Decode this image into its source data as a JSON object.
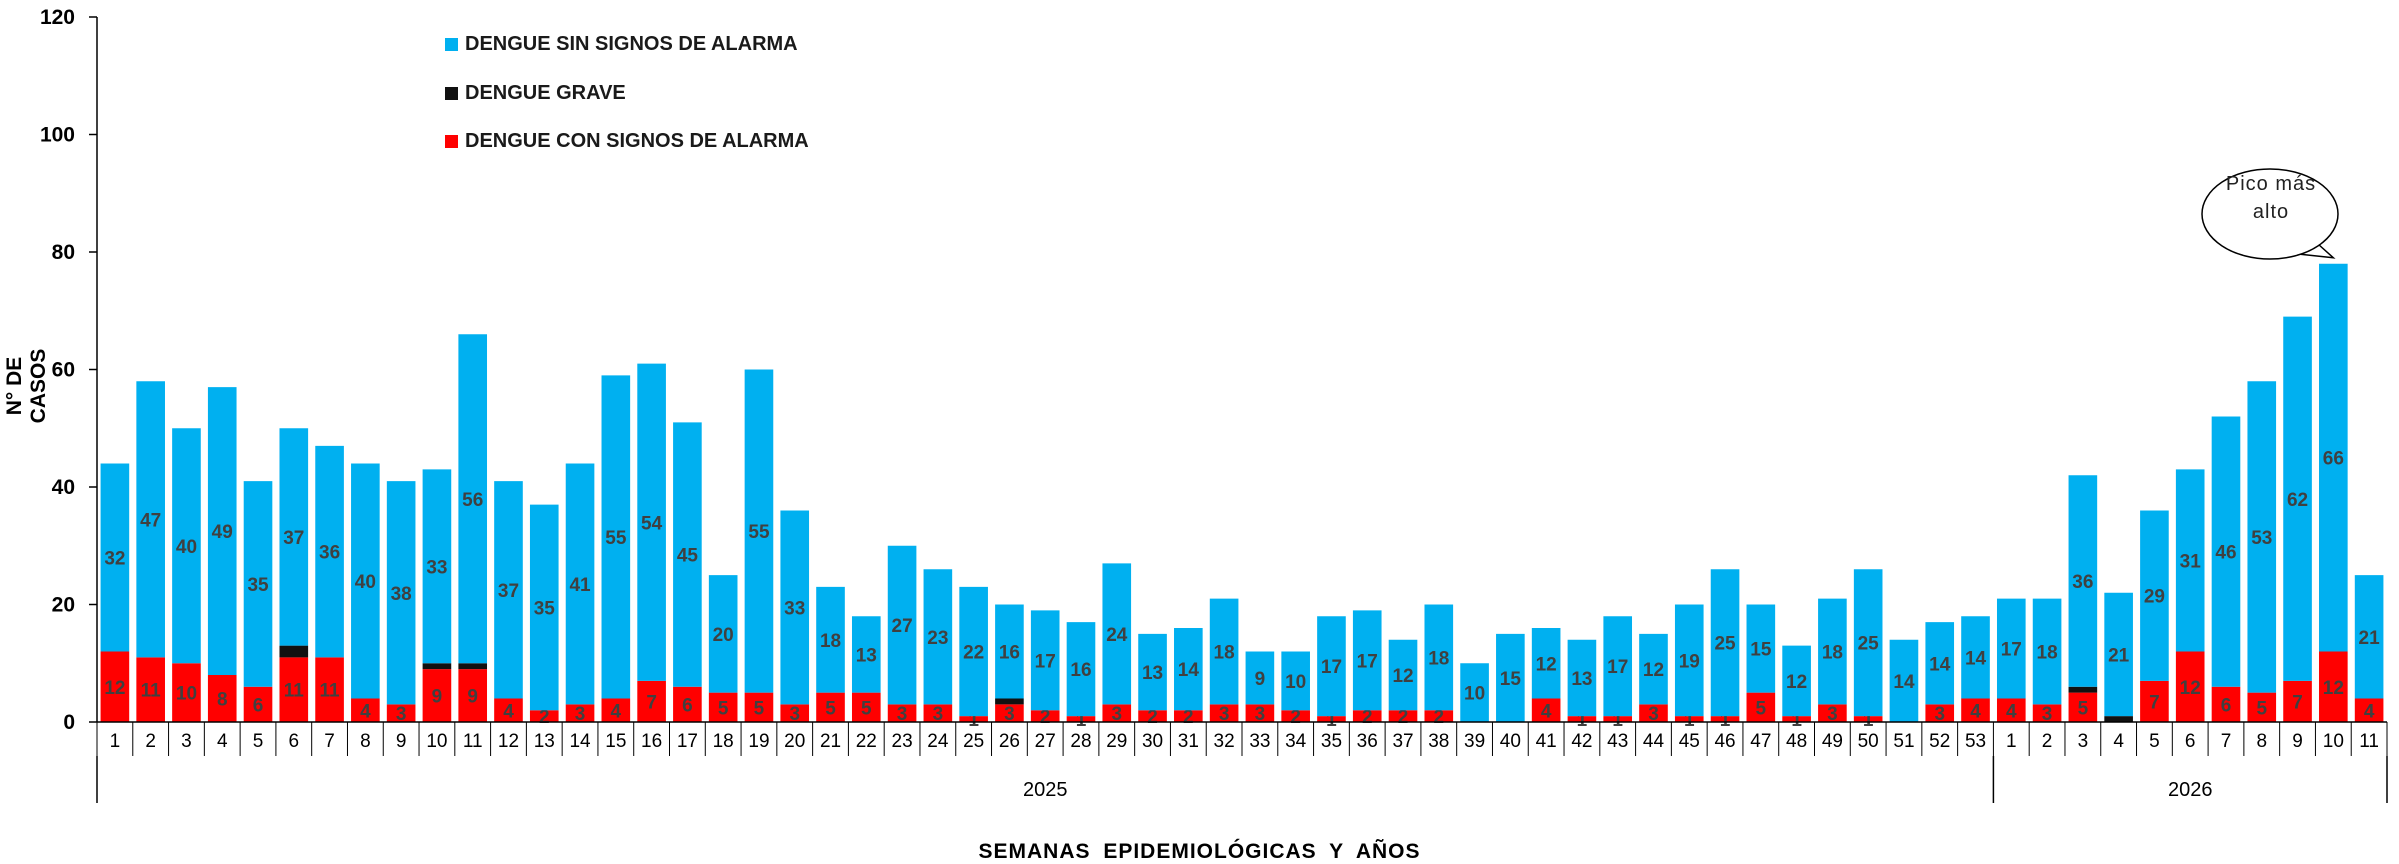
{
  "chart_data": {
    "type": "bar",
    "stacked": true,
    "title": "",
    "xlabel": "SEMANAS  EPIDEMIOLÓGICAS  Y AÑOS",
    "ylabel": "N° DE CASOS",
    "ylim": [
      0,
      120
    ],
    "yticks": [
      0,
      20,
      40,
      60,
      80,
      100,
      120
    ],
    "grid": false,
    "legend_position": "top-left",
    "categories": [
      "1",
      "2",
      "3",
      "4",
      "5",
      "6",
      "7",
      "8",
      "9",
      "10",
      "11",
      "12",
      "13",
      "14",
      "15",
      "16",
      "17",
      "18",
      "19",
      "20",
      "21",
      "22",
      "23",
      "24",
      "25",
      "26",
      "27",
      "28",
      "29",
      "30",
      "31",
      "32",
      "33",
      "34",
      "35",
      "36",
      "37",
      "38",
      "39",
      "40",
      "41",
      "42",
      "43",
      "44",
      "45",
      "46",
      "47",
      "48",
      "49",
      "50",
      "51",
      "52",
      "53",
      "1",
      "2",
      "3",
      "4",
      "5",
      "6",
      "7",
      "8",
      "9",
      "10",
      "11"
    ],
    "years": [
      {
        "label": "2025",
        "count": 53
      },
      {
        "label": "2026",
        "count": 11
      }
    ],
    "series": [
      {
        "name": "DENGUE CON SIGNOS DE ALARMA",
        "color": "#ff0000",
        "values": [
          12,
          11,
          10,
          8,
          6,
          11,
          11,
          4,
          3,
          9,
          9,
          4,
          2,
          3,
          4,
          7,
          6,
          5,
          5,
          3,
          5,
          5,
          3,
          3,
          1,
          3,
          2,
          1,
          3,
          2,
          2,
          3,
          3,
          2,
          1,
          2,
          2,
          2,
          0,
          0,
          4,
          1,
          1,
          3,
          1,
          1,
          5,
          1,
          3,
          1,
          0,
          3,
          4,
          4,
          3,
          5,
          0,
          7,
          12,
          6,
          5,
          7,
          12,
          4
        ]
      },
      {
        "name": "DENGUE GRAVE",
        "color": "#111111",
        "values": [
          0,
          0,
          0,
          0,
          0,
          2,
          0,
          0,
          0,
          1,
          1,
          0,
          0,
          0,
          0,
          0,
          0,
          0,
          0,
          0,
          0,
          0,
          0,
          0,
          0,
          1,
          0,
          0,
          0,
          0,
          0,
          0,
          0,
          0,
          0,
          0,
          0,
          0,
          0,
          0,
          0,
          0,
          0,
          0,
          0,
          0,
          0,
          0,
          0,
          0,
          0,
          0,
          0,
          0,
          0,
          1,
          1,
          0,
          0,
          0,
          0,
          0,
          0,
          0
        ]
      },
      {
        "name": "DENGUE SIN SIGNOS DE ALARMA",
        "color": "#00b0f0",
        "values": [
          32,
          47,
          40,
          49,
          35,
          37,
          36,
          40,
          38,
          33,
          56,
          37,
          35,
          41,
          55,
          54,
          45,
          20,
          55,
          33,
          18,
          13,
          27,
          23,
          22,
          16,
          17,
          16,
          24,
          13,
          14,
          18,
          9,
          10,
          17,
          17,
          12,
          18,
          10,
          15,
          12,
          13,
          17,
          12,
          19,
          25,
          15,
          12,
          18,
          25,
          14,
          14,
          14,
          17,
          18,
          36,
          21,
          29,
          31,
          46,
          53,
          62,
          66,
          21
        ]
      }
    ],
    "annotations": [
      {
        "text_line1": "Pico más",
        "text_line2": "alto",
        "target_index": 62
      }
    ]
  }
}
